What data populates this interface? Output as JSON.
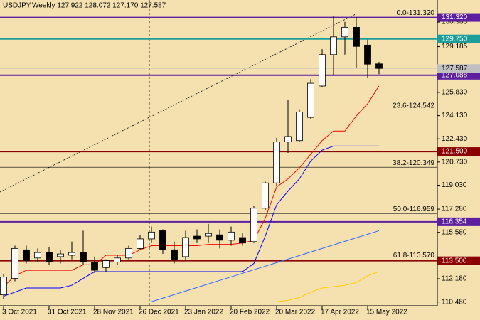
{
  "chart_data": {
    "type": "candlestick",
    "title": "USDJPY,Weekly  127.922 128.072 127.170 127.587",
    "categories": [
      "3 Oct 2021",
      null,
      null,
      null,
      "31 Oct 2021",
      null,
      null,
      null,
      "28 Nov 2021",
      null,
      null,
      null,
      "26 Dec 2021",
      null,
      null,
      null,
      "23 Jan 2022",
      null,
      null,
      null,
      "20 Feb 2022",
      null,
      null,
      null,
      "20 Mar 2022",
      null,
      null,
      null,
      "17 Apr 2022",
      null,
      null,
      null,
      "15 May 2022",
      null
    ],
    "open": [
      111.0,
      112.2,
      114.3,
      113.7,
      114.1,
      113.8,
      113.9,
      114.1,
      113.4,
      113.0,
      113.4,
      113.7,
      114.4,
      115.1,
      115.7,
      114.3,
      113.8,
      115.3,
      115.3,
      115.4,
      115.0,
      115.2,
      114.9,
      117.35,
      119.2,
      122.2,
      122.3,
      124.0,
      126.3,
      128.6,
      129.9,
      130.6,
      129.3,
      127.922
    ],
    "high": [
      112.5,
      114.6,
      114.6,
      114.4,
      114.5,
      114.3,
      114.9,
      115.7,
      113.8,
      113.6,
      113.9,
      114.6,
      115.4,
      116.0,
      115.8,
      114.9,
      115.7,
      115.8,
      116.2,
      115.8,
      116.0,
      115.5,
      117.5,
      119.3,
      122.5,
      125.3,
      124.6,
      126.8,
      129.0,
      131.4,
      131.0,
      131.35,
      129.7,
      128.072
    ],
    "low": [
      110.7,
      112.0,
      113.3,
      113.4,
      113.2,
      113.3,
      113.6,
      113.2,
      112.6,
      112.7,
      113.2,
      113.6,
      114.3,
      114.8,
      114.0,
      113.3,
      113.5,
      114.8,
      114.8,
      114.4,
      114.6,
      114.6,
      114.8,
      117.2,
      119.0,
      121.4,
      122.2,
      123.9,
      126.2,
      127.1,
      128.6,
      127.6,
      126.9,
      127.17
    ],
    "close": [
      112.3,
      114.4,
      113.5,
      114.1,
      113.4,
      114.0,
      114.1,
      113.4,
      112.8,
      113.5,
      113.7,
      114.4,
      115.1,
      115.6,
      114.3,
      113.6,
      115.2,
      115.1,
      115.5,
      115.0,
      115.6,
      114.8,
      117.35,
      119.2,
      122.2,
      122.6,
      124.4,
      126.5,
      128.6,
      129.9,
      130.6,
      129.2,
      127.9,
      127.587
    ],
    "up_color": "#ffffff",
    "down_color": "#000000",
    "series": [
      {
        "color": "#ff0000",
        "values": [
          111.6,
          112.4,
          112.8,
          112.8,
          112.8,
          112.8,
          112.8,
          113.2,
          113.2,
          113.9,
          113.9,
          113.9,
          114.3,
          114.6,
          114.6,
          114.6,
          114.6,
          114.6,
          114.7,
          114.7,
          114.7,
          114.8,
          115.0,
          116.6,
          118.9,
          119.5,
          120.3,
          121.3,
          122.3,
          123.0,
          123.0,
          124.1,
          125.0,
          126.3
        ]
      },
      {
        "color": "#0000ff",
        "values": [
          110.9,
          111.2,
          111.5,
          111.5,
          111.5,
          111.5,
          111.7,
          112.2,
          112.7,
          112.7,
          112.7,
          112.7,
          112.7,
          112.7,
          112.7,
          112.7,
          112.7,
          112.7,
          112.7,
          112.7,
          112.7,
          112.7,
          113.3,
          115.3,
          117.6,
          118.6,
          119.5,
          120.8,
          121.6,
          121.9,
          121.9,
          121.9,
          121.9,
          121.9
        ]
      },
      {
        "color": "#3366ff",
        "values": [
          null,
          null,
          null,
          null,
          null,
          null,
          null,
          null,
          null,
          null,
          null,
          null,
          null,
          110.5,
          110.76,
          111.02,
          111.28,
          111.54,
          111.8,
          112.06,
          112.32,
          112.58,
          112.84,
          113.1,
          113.36,
          113.62,
          113.88,
          114.14,
          114.4,
          114.66,
          114.92,
          115.18,
          115.44,
          115.7
        ]
      },
      {
        "color": "#ffcc00",
        "values": [
          null,
          null,
          null,
          null,
          null,
          null,
          null,
          null,
          null,
          null,
          null,
          null,
          null,
          null,
          null,
          null,
          null,
          null,
          null,
          null,
          null,
          null,
          null,
          null,
          110.5,
          110.6,
          110.8,
          111.2,
          111.5,
          111.6,
          111.7,
          111.9,
          112.4,
          112.7
        ]
      }
    ],
    "levels": [
      {
        "value": 131.32,
        "label": "131.320",
        "color": "#5b1fa0"
      },
      {
        "value": 129.75,
        "label": "129.750",
        "color": "#1e9e9a"
      },
      {
        "value": 127.088,
        "label": "127.088",
        "color": "#5b1fa0"
      },
      {
        "value": 121.5,
        "label": "121.500",
        "color": "#8b0000"
      },
      {
        "value": 116.354,
        "label": "116.354",
        "color": "#5b1fa0"
      },
      {
        "value": 113.5,
        "label": "113.500",
        "color": "#8b0000"
      }
    ],
    "fib_levels": [
      {
        "value": 131.32,
        "label": "0.0-131.320"
      },
      {
        "value": 124.542,
        "label": "23.6-124.542"
      },
      {
        "value": 120.349,
        "label": "38.2-120.349"
      },
      {
        "value": 116.959,
        "label": "50.0-116.959"
      },
      {
        "value": 113.57,
        "label": "61.8-113.570"
      }
    ],
    "last_price": {
      "value": 127.587,
      "label": "127.587"
    },
    "ylim": [
      110.2,
      132.6
    ],
    "yticks": [
      {
        "value": 130.985,
        "label": "130.985"
      },
      {
        "value": 129.185,
        "label": "129.185"
      },
      {
        "value": 125.83,
        "label": "125.830"
      },
      {
        "value": 124.13,
        "label": "124.130"
      },
      {
        "value": 122.43,
        "label": "122.430"
      },
      {
        "value": 120.73,
        "label": "120.730"
      },
      {
        "value": 119.03,
        "label": "119.030"
      },
      {
        "value": 117.28,
        "label": "117.280"
      },
      {
        "value": 115.58,
        "label": "115.580"
      },
      {
        "value": 112.18,
        "label": "112.180"
      },
      {
        "value": 110.48,
        "label": "110.480"
      }
    ]
  }
}
